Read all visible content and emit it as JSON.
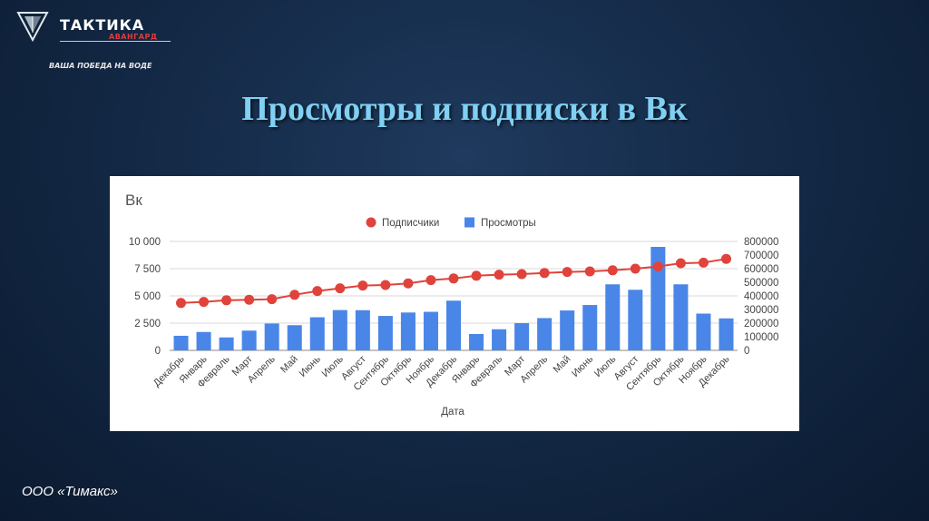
{
  "logo": {
    "name": "ТАКТИКА",
    "sub": "АВАНГАРД",
    "slogan": "ВАША ПОБЕДА НА ВОДЕ"
  },
  "slide": {
    "title": "Просмотры и подписки в Вк"
  },
  "footer": {
    "company": "ООО «Тимакс»"
  },
  "colors": {
    "subscribers": "#e0433b",
    "views": "#4a86e8",
    "title": "#7fd0f2"
  },
  "chart_data": {
    "type": "bar",
    "title": "Вк",
    "xlabel": "Дата",
    "ylabel_left": "",
    "ylabel_right": "",
    "legend_position": "top",
    "grid": true,
    "categories": [
      "Декабрь",
      "Январь",
      "Февраль",
      "Март",
      "Апрель",
      "Май",
      "Июнь",
      "Июль",
      "Август",
      "Сентябрь",
      "Октябрь",
      "Ноябрь",
      "Декабрь",
      "Январь",
      "Февраль",
      "Март",
      "Апрель",
      "Май",
      "Июнь",
      "Июль",
      "Август",
      "Сентябрь",
      "Октябрь",
      "Ноябрь",
      "Декабрь"
    ],
    "left_axis": {
      "min": 0,
      "max": 10000,
      "ticks": [
        0,
        2500,
        5000,
        7500,
        10000
      ],
      "tick_labels": [
        "0",
        "2 500",
        "5 000",
        "7 500",
        "10 000"
      ]
    },
    "right_axis": {
      "min": 0,
      "max": 800000,
      "ticks": [
        0,
        100000,
        200000,
        300000,
        400000,
        500000,
        600000,
        700000,
        800000
      ],
      "tick_labels": [
        "0",
        "100000",
        "200000",
        "300000",
        "400000",
        "500000",
        "600000",
        "700000",
        "800000"
      ]
    },
    "series": [
      {
        "name": "Подписчики",
        "type": "line",
        "axis": "left",
        "values": [
          4350,
          4450,
          4600,
          4650,
          4700,
          5100,
          5450,
          5700,
          5950,
          6000,
          6150,
          6450,
          6600,
          6850,
          6950,
          7000,
          7100,
          7200,
          7250,
          7350,
          7500,
          7700,
          8000,
          8050,
          8400
        ]
      },
      {
        "name": "Просмотры",
        "type": "bar",
        "axis": "right",
        "values": [
          107000,
          135000,
          95000,
          145000,
          197000,
          185000,
          243000,
          296000,
          295000,
          253000,
          278000,
          283000,
          365000,
          120000,
          155000,
          200000,
          237000,
          293000,
          333000,
          485000,
          445000,
          760000,
          485000,
          270000,
          235000
        ]
      }
    ]
  }
}
